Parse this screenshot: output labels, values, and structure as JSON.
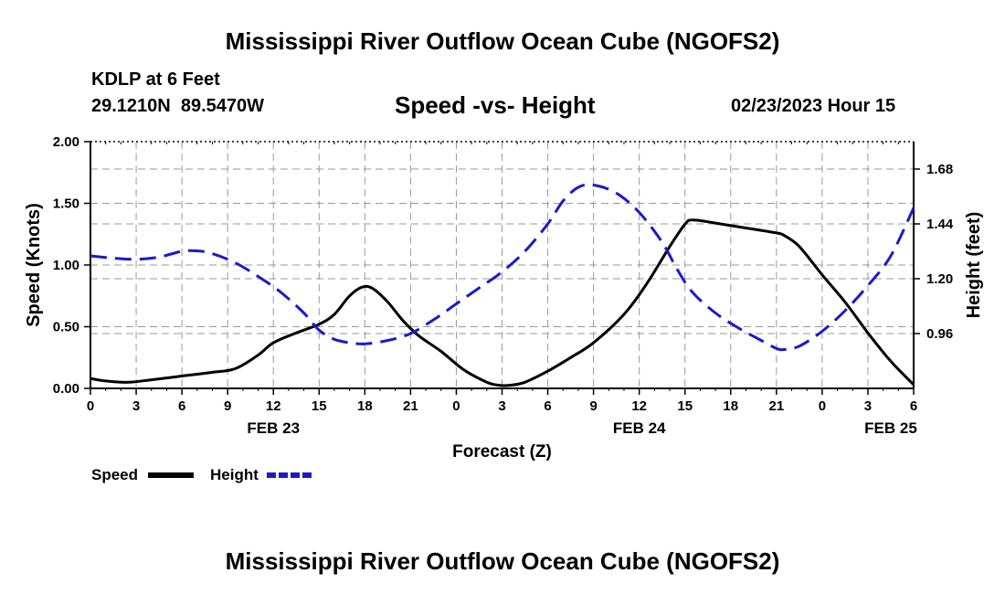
{
  "page": {
    "title": "Mississippi River Outflow Ocean Cube (NGOFS2)",
    "footer_title": "Mississippi River Outflow Ocean Cube (NGOFS2)",
    "station": "KDLP at 6 Feet",
    "coords": "29.1210N  89.5470W",
    "subtitle": "Speed -vs- Height",
    "datetime": "02/23/2023 Hour 15"
  },
  "colors": {
    "speed": "#000000",
    "height": "#1a1acc",
    "grid": "#999999"
  },
  "chart_data": {
    "type": "line",
    "xlabel": "Forecast (Z)",
    "ylabel_left": "Speed (Knots)",
    "ylabel_right": "Height (feet)",
    "x_range_hours": [
      0,
      54
    ],
    "x_ticks": [
      {
        "h": 0,
        "label": "0"
      },
      {
        "h": 3,
        "label": "3"
      },
      {
        "h": 6,
        "label": "6"
      },
      {
        "h": 9,
        "label": "9"
      },
      {
        "h": 12,
        "label": "12"
      },
      {
        "h": 15,
        "label": "15"
      },
      {
        "h": 18,
        "label": "18"
      },
      {
        "h": 21,
        "label": "21"
      },
      {
        "h": 24,
        "label": "0"
      },
      {
        "h": 27,
        "label": "3"
      },
      {
        "h": 30,
        "label": "6"
      },
      {
        "h": 33,
        "label": "9"
      },
      {
        "h": 36,
        "label": "12"
      },
      {
        "h": 39,
        "label": "15"
      },
      {
        "h": 42,
        "label": "18"
      },
      {
        "h": 45,
        "label": "21"
      },
      {
        "h": 48,
        "label": "0"
      },
      {
        "h": 51,
        "label": "3"
      },
      {
        "h": 54,
        "label": "6"
      }
    ],
    "date_labels": [
      {
        "h": 12,
        "label": "FEB 23"
      },
      {
        "h": 36,
        "label": "FEB 24"
      },
      {
        "h": 52.5,
        "label": "FEB 25"
      }
    ],
    "left_axis": {
      "range": [
        0,
        2.0
      ],
      "ticks": [
        {
          "v": 0,
          "label": "0.00"
        },
        {
          "v": 0.5,
          "label": "0.50"
        },
        {
          "v": 1.0,
          "label": "1.00"
        },
        {
          "v": 1.5,
          "label": "1.50"
        },
        {
          "v": 2.0,
          "label": "2.00"
        }
      ]
    },
    "right_axis": {
      "range": [
        0.72,
        1.8
      ],
      "ticks": [
        {
          "v": 0.96,
          "label": "0.96"
        },
        {
          "v": 1.2,
          "label": "1.20"
        },
        {
          "v": 1.44,
          "label": "1.44"
        },
        {
          "v": 1.68,
          "label": "1.68"
        }
      ]
    },
    "series": [
      {
        "name": "Speed",
        "axis": "left",
        "style": "solid",
        "points": [
          [
            0,
            0.08
          ],
          [
            1,
            0.06
          ],
          [
            2.5,
            0.05
          ],
          [
            4,
            0.07
          ],
          [
            6,
            0.1
          ],
          [
            8,
            0.13
          ],
          [
            9.5,
            0.16
          ],
          [
            11,
            0.27
          ],
          [
            12,
            0.37
          ],
          [
            13.5,
            0.45
          ],
          [
            15,
            0.52
          ],
          [
            16,
            0.6
          ],
          [
            17,
            0.75
          ],
          [
            17.8,
            0.82
          ],
          [
            18.5,
            0.81
          ],
          [
            19.5,
            0.7
          ],
          [
            20.5,
            0.55
          ],
          [
            21.5,
            0.43
          ],
          [
            23,
            0.3
          ],
          [
            24.5,
            0.15
          ],
          [
            26,
            0.05
          ],
          [
            26.8,
            0.025
          ],
          [
            27.5,
            0.025
          ],
          [
            28.5,
            0.05
          ],
          [
            30,
            0.14
          ],
          [
            31.5,
            0.25
          ],
          [
            33,
            0.37
          ],
          [
            35,
            0.6
          ],
          [
            36.5,
            0.85
          ],
          [
            38,
            1.15
          ],
          [
            39,
            1.33
          ],
          [
            39.5,
            1.365
          ],
          [
            41,
            1.34
          ],
          [
            43,
            1.3
          ],
          [
            45,
            1.26
          ],
          [
            45.5,
            1.24
          ],
          [
            46.5,
            1.15
          ],
          [
            48,
            0.92
          ],
          [
            49.5,
            0.7
          ],
          [
            51,
            0.45
          ],
          [
            52.5,
            0.22
          ],
          [
            54,
            0.03
          ]
        ]
      },
      {
        "name": "Height",
        "axis": "right",
        "style": "dashed",
        "points": [
          [
            0,
            1.3
          ],
          [
            1.5,
            1.29
          ],
          [
            3,
            1.285
          ],
          [
            4.5,
            1.295
          ],
          [
            6,
            1.32
          ],
          [
            7,
            1.322
          ],
          [
            8,
            1.31
          ],
          [
            9.5,
            1.27
          ],
          [
            11,
            1.21
          ],
          [
            12.5,
            1.14
          ],
          [
            14,
            1.05
          ],
          [
            15,
            0.975
          ],
          [
            16,
            0.935
          ],
          [
            17,
            0.92
          ],
          [
            18,
            0.915
          ],
          [
            19.5,
            0.93
          ],
          [
            21,
            0.96
          ],
          [
            22.5,
            1.02
          ],
          [
            24,
            1.09
          ],
          [
            25.5,
            1.16
          ],
          [
            27,
            1.23
          ],
          [
            28.5,
            1.32
          ],
          [
            30,
            1.44
          ],
          [
            31,
            1.54
          ],
          [
            32,
            1.6
          ],
          [
            33,
            1.61
          ],
          [
            34.5,
            1.575
          ],
          [
            36,
            1.49
          ],
          [
            37.5,
            1.36
          ],
          [
            38.5,
            1.24
          ],
          [
            39.5,
            1.14
          ],
          [
            41,
            1.05
          ],
          [
            42.5,
            0.985
          ],
          [
            44,
            0.93
          ],
          [
            45,
            0.895
          ],
          [
            45.5,
            0.89
          ],
          [
            46.5,
            0.905
          ],
          [
            48,
            0.97
          ],
          [
            49.5,
            1.06
          ],
          [
            51,
            1.17
          ],
          [
            52.5,
            1.3
          ],
          [
            54,
            1.51
          ]
        ]
      }
    ],
    "legend": [
      {
        "label": "Speed",
        "series": "Speed"
      },
      {
        "label": "Height",
        "series": "Height"
      }
    ]
  }
}
